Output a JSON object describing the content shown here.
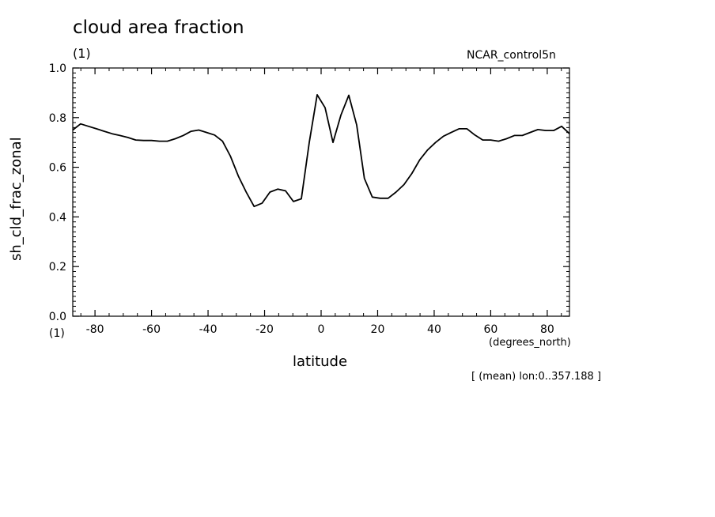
{
  "header": {
    "title": "cloud area fraction",
    "title_unit": "(1)",
    "dataset": "NCAR_control5n"
  },
  "footer": {
    "note": "[ (mean) lon:0..357.188 ]"
  },
  "chart_data": {
    "type": "line",
    "title": "cloud area fraction",
    "xlabel": "latitude",
    "xunit": "(degrees_north)",
    "ylabel": "sh_cld_frac_zonal",
    "yunit": "(1)",
    "xlim": [
      -87.8638,
      87.8638
    ],
    "ylim": [
      0.0,
      1.0
    ],
    "xticks": [
      -80,
      -60,
      -40,
      -20,
      0,
      20,
      40,
      60,
      80
    ],
    "yticks": [
      0.0,
      0.2,
      0.4,
      0.6,
      0.8,
      1.0
    ],
    "xtick_labels": [
      "-80",
      "-60",
      "-40",
      "-20",
      "0",
      "20",
      "40",
      "60",
      "80"
    ],
    "ytick_labels": [
      "0.0",
      "0.2",
      "0.4",
      "0.6",
      "0.8",
      "1.0"
    ],
    "grid": false,
    "series": [
      {
        "x": [
          -87.9,
          -85.1,
          -82.3,
          -79.5,
          -76.7,
          -73.9,
          -71.2,
          -68.4,
          -65.6,
          -62.8,
          -60.0,
          -57.2,
          -54.4,
          -51.6,
          -48.8,
          -46.0,
          -43.3,
          -40.5,
          -37.7,
          -34.9,
          -32.1,
          -29.3,
          -26.5,
          -23.7,
          -20.9,
          -18.1,
          -15.3,
          -12.6,
          -9.8,
          -7.0,
          -4.2,
          -1.4,
          1.4,
          4.2,
          7.0,
          9.8,
          12.6,
          15.3,
          18.1,
          20.9,
          23.7,
          26.5,
          29.3,
          32.1,
          34.9,
          37.7,
          40.5,
          43.3,
          46.0,
          48.8,
          51.6,
          54.4,
          57.2,
          60.0,
          62.8,
          65.6,
          68.4,
          71.2,
          73.9,
          76.7,
          79.5,
          82.3,
          85.1,
          87.9
        ],
        "values": [
          0.75,
          0.775,
          0.765,
          0.755,
          0.745,
          0.735,
          0.728,
          0.72,
          0.71,
          0.708,
          0.708,
          0.705,
          0.705,
          0.715,
          0.728,
          0.745,
          0.75,
          0.74,
          0.73,
          0.705,
          0.645,
          0.565,
          0.5,
          0.442,
          0.455,
          0.5,
          0.512,
          0.505,
          0.462,
          0.473,
          0.7,
          0.892,
          0.84,
          0.7,
          0.81,
          0.89,
          0.77,
          0.555,
          0.48,
          0.475,
          0.475,
          0.5,
          0.53,
          0.575,
          0.63,
          0.67,
          0.7,
          0.725,
          0.74,
          0.755,
          0.755,
          0.73,
          0.71,
          0.71,
          0.705,
          0.715,
          0.728,
          0.728,
          0.74,
          0.752,
          0.748,
          0.748,
          0.765,
          0.735
        ]
      }
    ]
  }
}
